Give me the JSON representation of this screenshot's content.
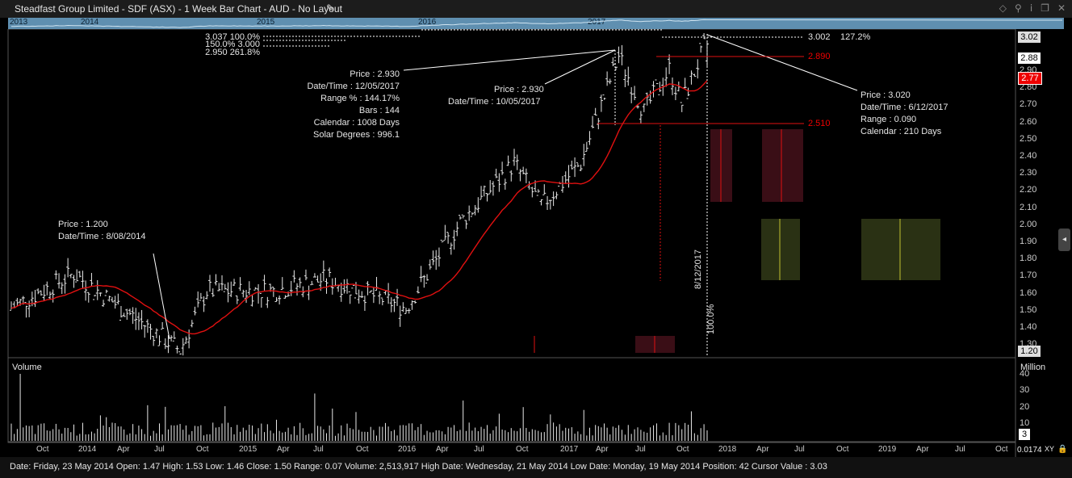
{
  "window": {
    "title": "Steadfast Group Limited - SDF (ASX) - 1 Week Bar Chart - AUD - No Layout",
    "icons": [
      "diamond-icon",
      "pin-icon",
      "info-icon",
      "restore-icon",
      "close-icon"
    ]
  },
  "navigator": {
    "years": [
      "2013",
      "2014",
      "2015",
      "2016",
      "2017"
    ]
  },
  "price_axis": {
    "ticks": [
      "2.90",
      "2.80",
      "2.70",
      "2.60",
      "2.50",
      "2.40",
      "2.30",
      "2.20",
      "2.10",
      "2.00",
      "1.90",
      "1.80",
      "1.70",
      "1.60",
      "1.50",
      "1.40",
      "1.30"
    ],
    "top_label": "3.02",
    "current_label": "2.88",
    "red_label": "2.77",
    "bottom_label": "1.20"
  },
  "volume_axis": {
    "title": "Volume",
    "unit": "Million",
    "ticks": [
      "40",
      "30",
      "20",
      "10"
    ],
    "current": "3"
  },
  "time_axis": {
    "labels": [
      "Oct",
      "2014",
      "Apr",
      "Jul",
      "Oct",
      "2015",
      "Apr",
      "Jul",
      "Oct",
      "2016",
      "Apr",
      "Jul",
      "Oct",
      "2017",
      "Apr",
      "Jul",
      "Oct",
      "2018",
      "Apr",
      "Jul",
      "Oct",
      "2019",
      "Apr",
      "Jul",
      "Oct"
    ],
    "corner_value": "0.0174",
    "xy_label": "XY"
  },
  "fib_top": {
    "row1": "3.037   100.0%",
    "row2": "150.0%   3.000",
    "row3": "2.950   261.8%"
  },
  "fib_right": {
    "price": "3.002",
    "pct": "127.2%"
  },
  "levels": {
    "upper": "2.890",
    "lower": "2.510"
  },
  "annotations": {
    "low": {
      "price": "Price : 1.200",
      "date": "Date/Time : 8/08/2014"
    },
    "mid": {
      "price": "Price : 2.930",
      "date": "Date/Time : 12/05/2017",
      "range": "Range % : 144.17%",
      "bars": "Bars  :  144",
      "calendar": "Calendar  :  1008 Days",
      "solar": "Solar Degrees  :  996.1"
    },
    "mid2": {
      "price": "Price : 2.930",
      "date": "Date/Time : 10/05/2017"
    },
    "high": {
      "price": "Price : 3.020",
      "date": "Date/Time : 6/12/2017",
      "range": "Range : 0.090",
      "calendar": "Calendar  :  210 Days"
    },
    "vline_date": "8/12/2017",
    "vline_pct": "100.0%"
  },
  "status": "Date: Friday, 23 May 2014 Open: 1.47 High: 1.53 Low: 1.46 Close: 1.50 Range: 0.07 Volume: 2,513,917 High Date: Wednesday, 21 May 2014 Low Date: Monday, 19 May 2014 Position: 42 Cursor Value : 3.03",
  "chart_data": {
    "type": "bar",
    "series": [
      {
        "name": "",
        "ma_anchor_dates": [
          "2013-08",
          "2014-01",
          "2014-08",
          "2015-01",
          "2015-08",
          "2016-03",
          "2016-08",
          "2017-01",
          "2017-08",
          "2017-12"
        ]
      }
    ],
    "ylim": [
      1.2,
      3.04
    ],
    "price_anchors": [
      {
        "date": "2013-07",
        "close": 1.45
      },
      {
        "date": "2013-12",
        "close": 1.65
      },
      {
        "date": "2014-08",
        "close": 1.2
      },
      {
        "date": "2014-10",
        "close": 1.55
      },
      {
        "date": "2015-03",
        "close": 1.55
      },
      {
        "date": "2015-07",
        "close": 1.62
      },
      {
        "date": "2016-01",
        "close": 1.45
      },
      {
        "date": "2016-05",
        "close": 1.95
      },
      {
        "date": "2016-09",
        "close": 2.3
      },
      {
        "date": "2016-11",
        "close": 2.05
      },
      {
        "date": "2017-02",
        "close": 2.3
      },
      {
        "date": "2017-05",
        "close": 2.93
      },
      {
        "date": "2017-07",
        "close": 2.6
      },
      {
        "date": "2017-09",
        "close": 2.85
      },
      {
        "date": "2017-10",
        "close": 2.65
      },
      {
        "date": "2017-12",
        "close": 3.02
      }
    ],
    "volume_ylim": [
      0,
      40
    ]
  }
}
